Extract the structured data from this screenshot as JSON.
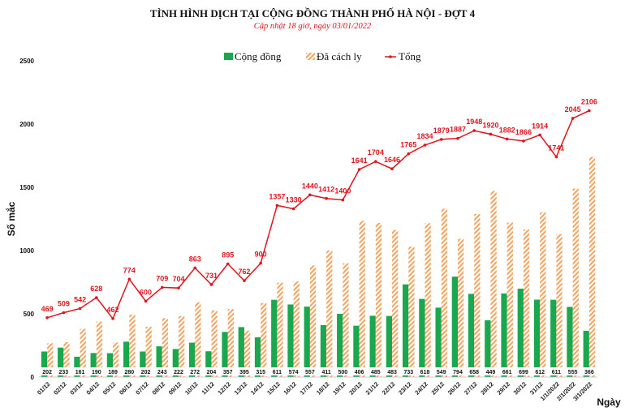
{
  "chart_data": {
    "type": "bar",
    "title": "TÌNH HÌNH DỊCH TẠI CỘNG ĐỒNG THÀNH PHỐ HÀ NỘI - ĐỢT 4",
    "subtitle": "Cập nhật 18 giờ, ngày 03/01/2022",
    "xlabel": "Ngày",
    "ylabel": "Số mắc",
    "ylim": [
      0,
      2500
    ],
    "yticks": [
      0,
      500,
      1000,
      1500,
      2000,
      2500
    ],
    "grid": false,
    "legend_position": "top",
    "categories": [
      "01/12",
      "02/12",
      "03/12",
      "04/12",
      "05/12",
      "06/12",
      "07/12",
      "08/12",
      "09/12",
      "10/12",
      "11/12",
      "12/12",
      "13/12",
      "14/12",
      "15/12",
      "16/12",
      "17/12",
      "18/12",
      "19/12",
      "20/12",
      "21/12",
      "22/12",
      "23/12",
      "24/12",
      "25/12",
      "26/12",
      "27/12",
      "28/12",
      "29/12",
      "30/12",
      "31/12",
      "1/1/2022",
      "2/1/2022",
      "3/1/2022"
    ],
    "series": [
      {
        "name": "Cộng đồng",
        "kind": "bar",
        "color": "#1aa84f",
        "values": [
          202,
          233,
          161,
          190,
          189,
          280,
          202,
          243,
          222,
          272,
          204,
          357,
          395,
          315,
          611,
          574,
          557,
          411,
          500,
          406,
          485,
          483,
          733,
          618,
          549,
          794,
          658,
          449,
          661,
          699,
          612,
          611,
          555,
          366
        ]
      },
      {
        "name": "Đã cách ly",
        "kind": "bar-hatched",
        "color": "#f4a460",
        "values": [
          267,
          276,
          381,
          438,
          273,
          494,
          398,
          466,
          482,
          591,
          527,
          538,
          367,
          585,
          746,
          756,
          883,
          1001,
          900,
          1235,
          1219,
          1163,
          1032,
          1216,
          1330,
          1093,
          1290,
          1471,
          1221,
          1167,
          1302,
          1130,
          1490,
          1740
        ]
      },
      {
        "name": "Tổng",
        "kind": "line",
        "color": "#e0141e",
        "values": [
          469,
          509,
          542,
          628,
          462,
          774,
          600,
          709,
          704,
          863,
          731,
          895,
          762,
          900,
          1357,
          1330,
          1440,
          1412,
          1400,
          1641,
          1704,
          1646,
          1765,
          1834,
          1879,
          1887,
          1948,
          1920,
          1882,
          1866,
          1914,
          1741,
          2045,
          2106
        ]
      }
    ]
  }
}
